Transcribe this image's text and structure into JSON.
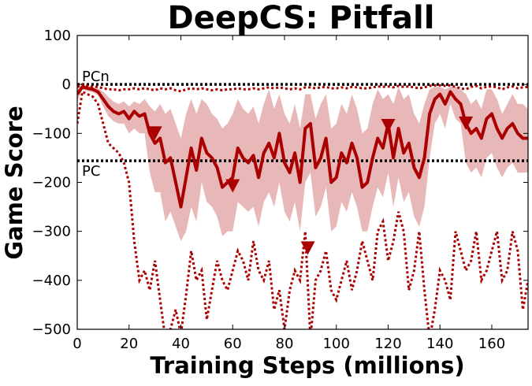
{
  "chart_data": {
    "type": "line",
    "title": "DeepCS: Pitfall",
    "xlabel": "Training Steps (millions)",
    "ylabel": "Game Score",
    "xlim": [
      0,
      174
    ],
    "ylim": [
      -500,
      100
    ],
    "xticks": [
      0,
      20,
      40,
      60,
      80,
      100,
      120,
      140,
      160
    ],
    "yticks": [
      100,
      0,
      -100,
      -200,
      -300,
      -400,
      -500
    ],
    "xtick_labels": [
      "0",
      "20",
      "40",
      "60",
      "80",
      "100",
      "120",
      "140",
      "160"
    ],
    "ytick_labels": [
      "100",
      "0",
      "−100",
      "−200",
      "−300",
      "−400",
      "−500"
    ],
    "grid": false,
    "colors": {
      "mean": "#aa0000",
      "band": "#e8b8b8",
      "reference": "#000000"
    },
    "reference_lines": [
      {
        "label": "PCn",
        "y": 0
      },
      {
        "label": "PC",
        "y": -156
      }
    ],
    "series": [
      {
        "role": "mean",
        "x": [
          0,
          2,
          4,
          6,
          8,
          10,
          12,
          14,
          16,
          18,
          20,
          22,
          24,
          26,
          28,
          30,
          32,
          34,
          36,
          38,
          40,
          42,
          44,
          46,
          48,
          50,
          52,
          54,
          56,
          58,
          60,
          62,
          64,
          66,
          68,
          70,
          72,
          74,
          76,
          78,
          80,
          82,
          84,
          86,
          88,
          90,
          92,
          94,
          96,
          98,
          100,
          102,
          104,
          106,
          108,
          110,
          112,
          114,
          116,
          118,
          120,
          122,
          124,
          126,
          128,
          130,
          132,
          134,
          136,
          138,
          140,
          142,
          144,
          146,
          148,
          150,
          152,
          154,
          156,
          158,
          160,
          162,
          164,
          166,
          168,
          170,
          172,
          174
        ],
        "y": [
          -20,
          -5,
          -8,
          -10,
          -15,
          -30,
          -45,
          -55,
          -60,
          -55,
          -70,
          -55,
          -65,
          -60,
          -100,
          -120,
          -110,
          -160,
          -150,
          -200,
          -250,
          -190,
          -130,
          -175,
          -110,
          -140,
          -150,
          -170,
          -210,
          -200,
          -190,
          -130,
          -150,
          -160,
          -145,
          -190,
          -140,
          -120,
          -150,
          -100,
          -160,
          -180,
          -140,
          -200,
          -90,
          -80,
          -170,
          -150,
          -110,
          -200,
          -190,
          -140,
          -160,
          -120,
          -150,
          -210,
          -200,
          -150,
          -110,
          -130,
          -80,
          -150,
          -90,
          -140,
          -120,
          -170,
          -190,
          -150,
          -60,
          -30,
          -20,
          -40,
          -15,
          -30,
          -40,
          -80,
          -100,
          -90,
          -110,
          -70,
          -60,
          -90,
          -110,
          -90,
          -80,
          -100,
          -110,
          -110
        ]
      },
      {
        "role": "upper",
        "x": [
          0,
          2,
          4,
          6,
          8,
          10,
          12,
          14,
          16,
          18,
          20,
          22,
          24,
          26,
          28,
          30,
          32,
          34,
          36,
          38,
          40,
          42,
          44,
          46,
          48,
          50,
          52,
          54,
          56,
          58,
          60,
          62,
          64,
          66,
          68,
          70,
          72,
          74,
          76,
          78,
          80,
          82,
          84,
          86,
          88,
          90,
          92,
          94,
          96,
          98,
          100,
          102,
          104,
          106,
          108,
          110,
          112,
          114,
          116,
          118,
          120,
          122,
          124,
          126,
          128,
          130,
          132,
          134,
          136,
          138,
          140,
          142,
          144,
          146,
          148,
          150,
          152,
          154,
          156,
          158,
          160,
          162,
          164,
          166,
          168,
          170,
          172,
          174
        ],
        "y": [
          -5,
          -2,
          -3,
          -5,
          -8,
          -15,
          -25,
          -35,
          -40,
          -35,
          -45,
          -35,
          -40,
          -30,
          -45,
          -55,
          -40,
          -60,
          -50,
          -80,
          -110,
          -60,
          -30,
          -60,
          -30,
          -40,
          -60,
          -70,
          -90,
          -80,
          -60,
          -30,
          -50,
          -60,
          -45,
          -80,
          -40,
          -10,
          -50,
          -20,
          -60,
          -80,
          -40,
          -90,
          -20,
          -20,
          -70,
          -40,
          -20,
          -90,
          -80,
          -40,
          -60,
          -20,
          -50,
          -100,
          -90,
          -40,
          -10,
          -30,
          -20,
          -40,
          -5,
          -30,
          -20,
          -60,
          -80,
          -40,
          -10,
          -5,
          -5,
          -10,
          -5,
          -5,
          -10,
          -20,
          -40,
          -30,
          -50,
          -10,
          -10,
          -30,
          -60,
          -40,
          -20,
          -40,
          -40,
          -50
        ]
      },
      {
        "role": "lower",
        "x": [
          0,
          2,
          4,
          6,
          8,
          10,
          12,
          14,
          16,
          18,
          20,
          22,
          24,
          26,
          28,
          30,
          32,
          34,
          36,
          38,
          40,
          42,
          44,
          46,
          48,
          50,
          52,
          54,
          56,
          58,
          60,
          62,
          64,
          66,
          68,
          70,
          72,
          74,
          76,
          78,
          80,
          82,
          84,
          86,
          88,
          90,
          92,
          94,
          96,
          98,
          100,
          102,
          104,
          106,
          108,
          110,
          112,
          114,
          116,
          118,
          120,
          122,
          124,
          126,
          128,
          130,
          132,
          134,
          136,
          138,
          140,
          142,
          144,
          146,
          148,
          150,
          152,
          154,
          156,
          158,
          160,
          162,
          164,
          166,
          168,
          170,
          172,
          174
        ],
        "y": [
          -35,
          -10,
          -14,
          -16,
          -22,
          -45,
          -65,
          -75,
          -80,
          -80,
          -100,
          -90,
          -100,
          -100,
          -180,
          -220,
          -220,
          -280,
          -260,
          -290,
          -320,
          -300,
          -250,
          -280,
          -200,
          -240,
          -250,
          -270,
          -310,
          -300,
          -300,
          -240,
          -250,
          -260,
          -250,
          -290,
          -240,
          -220,
          -250,
          -200,
          -260,
          -280,
          -240,
          -300,
          -200,
          -180,
          -270,
          -250,
          -210,
          -300,
          -290,
          -240,
          -260,
          -220,
          -250,
          -300,
          -300,
          -250,
          -210,
          -230,
          -180,
          -250,
          -190,
          -240,
          -220,
          -270,
          -290,
          -250,
          -150,
          -80,
          -60,
          -90,
          -40,
          -70,
          -80,
          -160,
          -180,
          -170,
          -190,
          -150,
          -140,
          -170,
          -190,
          -170,
          -160,
          -180,
          -180,
          -180
        ]
      },
      {
        "role": "min",
        "x": [
          0,
          2,
          4,
          6,
          8,
          10,
          12,
          14,
          16,
          18,
          20,
          22,
          24,
          26,
          28,
          30,
          32,
          34,
          36,
          38,
          40,
          42,
          44,
          46,
          48,
          50,
          52,
          54,
          56,
          58,
          60,
          62,
          64,
          66,
          68,
          70,
          72,
          74,
          76,
          78,
          80,
          82,
          84,
          86,
          88,
          90,
          92,
          94,
          96,
          98,
          100,
          102,
          104,
          106,
          108,
          110,
          112,
          114,
          116,
          118,
          120,
          122,
          124,
          126,
          128,
          130,
          132,
          134,
          136,
          138,
          140,
          142,
          144,
          146,
          148,
          150,
          152,
          154,
          156,
          158,
          160,
          162,
          164,
          166,
          168,
          170,
          172,
          174
        ],
        "y": [
          -80,
          -15,
          -20,
          -25,
          -40,
          -80,
          -120,
          -130,
          -140,
          -160,
          -200,
          -320,
          -400,
          -380,
          -420,
          -360,
          -440,
          -520,
          -500,
          -460,
          -510,
          -430,
          -340,
          -400,
          -380,
          -480,
          -420,
          -360,
          -400,
          -420,
          -380,
          -340,
          -360,
          -400,
          -320,
          -380,
          -400,
          -360,
          -460,
          -420,
          -500,
          -420,
          -380,
          -400,
          -300,
          -520,
          -400,
          -380,
          -340,
          -420,
          -440,
          -400,
          -360,
          -420,
          -380,
          -320,
          -360,
          -400,
          -300,
          -280,
          -360,
          -320,
          -260,
          -300,
          -420,
          -380,
          -300,
          -420,
          -520,
          -460,
          -380,
          -400,
          -440,
          -300,
          -340,
          -380,
          -360,
          -300,
          -400,
          -380,
          -340,
          -300,
          -400,
          -380,
          -300,
          -340,
          -460,
          -400
        ]
      },
      {
        "role": "max",
        "x": [
          0,
          2,
          4,
          6,
          8,
          10,
          12,
          14,
          16,
          18,
          20,
          22,
          24,
          26,
          28,
          30,
          32,
          34,
          36,
          38,
          40,
          42,
          44,
          46,
          48,
          50,
          52,
          54,
          56,
          58,
          60,
          62,
          64,
          66,
          68,
          70,
          72,
          74,
          76,
          78,
          80,
          82,
          84,
          86,
          88,
          90,
          92,
          94,
          96,
          98,
          100,
          102,
          104,
          106,
          108,
          110,
          112,
          114,
          116,
          118,
          120,
          122,
          124,
          126,
          128,
          130,
          132,
          134,
          136,
          138,
          140,
          142,
          144,
          146,
          148,
          150,
          152,
          154,
          156,
          158,
          160,
          162,
          164,
          166,
          168,
          170,
          172,
          174
        ],
        "y": [
          -5,
          0,
          -3,
          -5,
          -5,
          -8,
          -10,
          -10,
          -12,
          -10,
          -10,
          -8,
          -10,
          -8,
          -10,
          -12,
          -8,
          -10,
          -8,
          -12,
          -14,
          -10,
          -8,
          -10,
          -8,
          -10,
          -12,
          -10,
          -12,
          -10,
          -10,
          -8,
          -10,
          -10,
          -8,
          -10,
          -8,
          -6,
          -8,
          -6,
          -8,
          -10,
          -8,
          -10,
          -6,
          -6,
          -8,
          -6,
          -5,
          -8,
          -8,
          -6,
          -8,
          -5,
          -6,
          -8,
          -8,
          -6,
          -4,
          -5,
          -4,
          -6,
          -3,
          -5,
          -4,
          -6,
          -8,
          -6,
          -3,
          -2,
          -2,
          -3,
          -2,
          -5,
          -8,
          -10,
          -5,
          -3,
          -8,
          -5,
          -4,
          -6,
          -10,
          -6,
          -4,
          -8,
          -6,
          -5
        ]
      }
    ],
    "markers": [
      {
        "x": 30,
        "y": -100
      },
      {
        "x": 60,
        "y": -208
      },
      {
        "x": 89,
        "y": -335
      },
      {
        "x": 120,
        "y": -85
      },
      {
        "x": 150,
        "y": -80
      }
    ]
  }
}
